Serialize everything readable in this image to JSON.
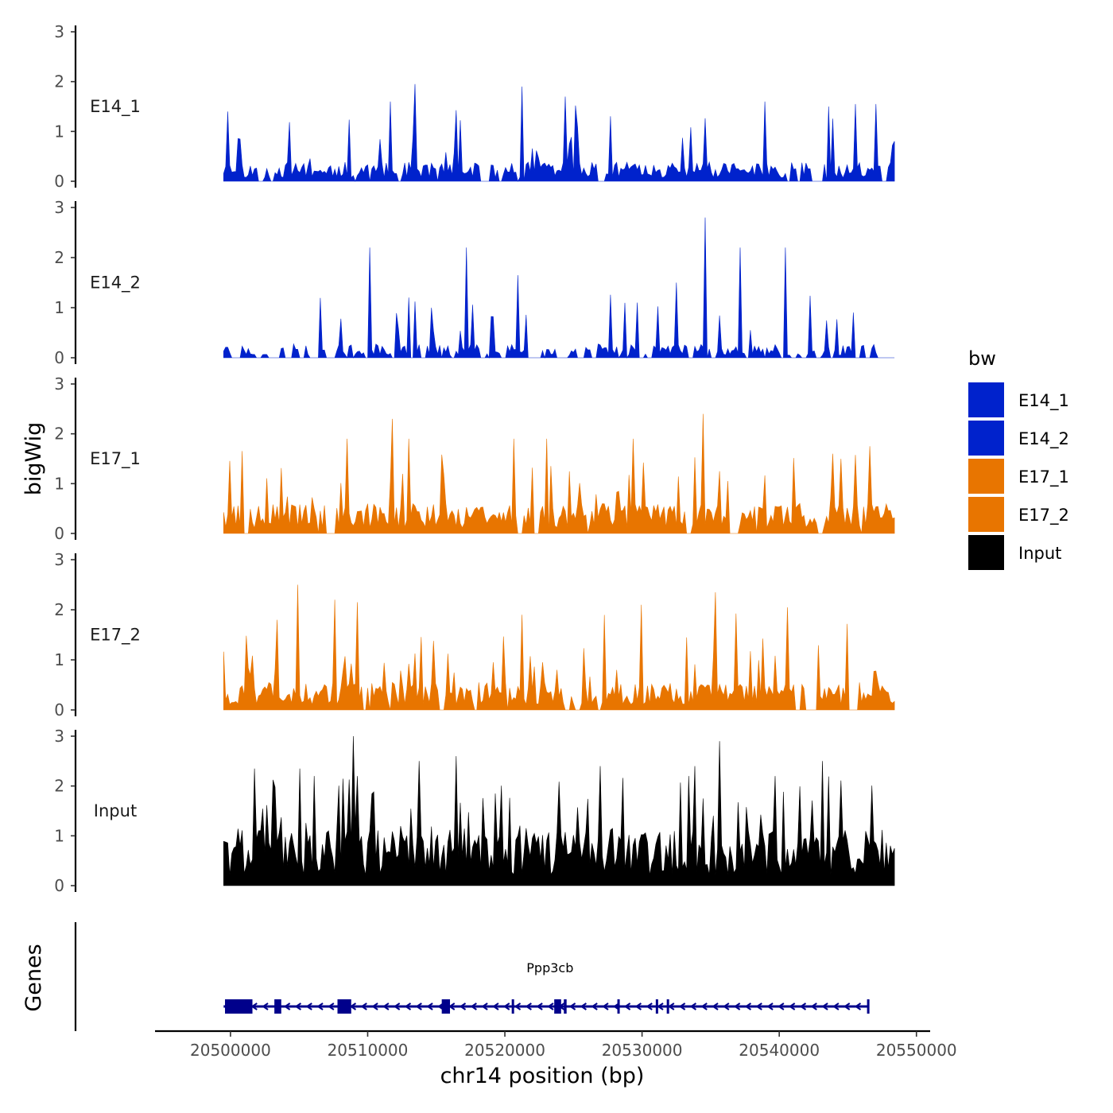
{
  "chart_data": {
    "type": "area",
    "title": "",
    "ylabel": "bigWig",
    "xlabel": "chr14 position (bp)",
    "xlim": [
      20494500,
      20551000
    ],
    "data_xrange": [
      20499500,
      20548500
    ],
    "ylim": [
      0,
      3
    ],
    "y_ticks": [
      "0",
      "1",
      "2",
      "3"
    ],
    "x_ticks": [
      {
        "value": 20500000,
        "label": "20500000"
      },
      {
        "value": 20510000,
        "label": "20510000"
      },
      {
        "value": 20520000,
        "label": "20520000"
      },
      {
        "value": 20530000,
        "label": "20530000"
      },
      {
        "value": 20540000,
        "label": "20540000"
      },
      {
        "value": 20550000,
        "label": "20550000"
      }
    ],
    "legend": {
      "title": "bw",
      "position": "right",
      "entries": [
        {
          "label": "E14_1",
          "color": "#0022CC"
        },
        {
          "label": "E14_2",
          "color": "#0022CC"
        },
        {
          "label": "E17_1",
          "color": "#E87500"
        },
        {
          "label": "E17_2",
          "color": "#E87500"
        },
        {
          "label": "Input",
          "color": "#000000"
        }
      ]
    },
    "series": [
      {
        "name": "E14_1",
        "color": "#0022CC",
        "seed": 11,
        "base": 0.35,
        "spike": 0.9,
        "peak_prob": 0.1,
        "zero_prob": 0.16,
        "peaks": [
          {
            "x": 20513400,
            "y": 1.95
          },
          {
            "x": 20521300,
            "y": 1.9
          },
          {
            "x": 20524400,
            "y": 1.7
          },
          {
            "x": 20511600,
            "y": 1.6
          },
          {
            "x": 20539000,
            "y": 1.6
          },
          {
            "x": 20545500,
            "y": 1.55
          },
          {
            "x": 20547100,
            "y": 1.55
          },
          {
            "x": 20543600,
            "y": 1.5
          },
          {
            "x": 20499800,
            "y": 1.4
          }
        ],
        "gaps": [
          [
            20518250,
            20518900
          ],
          [
            20526700,
            20527300
          ],
          [
            20542300,
            20543200
          ]
        ]
      },
      {
        "name": "E14_2",
        "color": "#0022CC",
        "seed": 23,
        "base": 0.25,
        "spike": 0.85,
        "peak_prob": 0.08,
        "zero_prob": 0.28,
        "peaks": [
          {
            "x": 20534600,
            "y": 2.8
          },
          {
            "x": 20540400,
            "y": 2.2
          },
          {
            "x": 20510200,
            "y": 2.2
          },
          {
            "x": 20517200,
            "y": 2.2
          },
          {
            "x": 20537200,
            "y": 2.2
          },
          {
            "x": 20521000,
            "y": 1.65
          },
          {
            "x": 20532500,
            "y": 1.5
          }
        ],
        "gaps": [
          [
            20500300,
            20500700
          ],
          [
            20501800,
            20502300
          ],
          [
            20503100,
            20503600
          ],
          [
            20504100,
            20504500
          ],
          [
            20505800,
            20506400
          ],
          [
            20507400,
            20507700
          ],
          [
            20521600,
            20522600
          ],
          [
            20523800,
            20524600
          ],
          [
            20525300,
            20525800
          ],
          [
            20533300,
            20533800
          ],
          [
            20535000,
            20535300
          ],
          [
            20540800,
            20541200
          ],
          [
            20542600,
            20543000
          ],
          [
            20543700,
            20544000
          ],
          [
            20546200,
            20546600
          ],
          [
            20547200,
            20548500
          ]
        ]
      },
      {
        "name": "E17_1",
        "color": "#E87500",
        "seed": 37,
        "base": 0.55,
        "spike": 1.0,
        "peak_prob": 0.11,
        "zero_prob": 0.1,
        "peaks": [
          {
            "x": 20534500,
            "y": 2.4
          },
          {
            "x": 20511800,
            "y": 2.3
          },
          {
            "x": 20513000,
            "y": 1.9
          },
          {
            "x": 20508500,
            "y": 1.9
          },
          {
            "x": 20520600,
            "y": 1.9
          },
          {
            "x": 20523000,
            "y": 1.9
          },
          {
            "x": 20529300,
            "y": 1.9
          },
          {
            "x": 20546600,
            "y": 1.75
          },
          {
            "x": 20543900,
            "y": 1.6
          }
        ],
        "gaps": [
          [
            20507000,
            20507600
          ],
          [
            20536500,
            20537000
          ],
          [
            20542800,
            20543200
          ]
        ]
      },
      {
        "name": "E17_2",
        "color": "#E87500",
        "seed": 53,
        "base": 0.5,
        "spike": 1.1,
        "peak_prob": 0.14,
        "zero_prob": 0.12,
        "peaks": [
          {
            "x": 20504900,
            "y": 2.5
          },
          {
            "x": 20507600,
            "y": 2.2
          },
          {
            "x": 20509300,
            "y": 2.15
          },
          {
            "x": 20535400,
            "y": 2.35
          },
          {
            "x": 20530000,
            "y": 2.1
          },
          {
            "x": 20540600,
            "y": 2.05
          },
          {
            "x": 20503400,
            "y": 1.8
          },
          {
            "x": 20521300,
            "y": 1.9
          }
        ],
        "gaps": [
          [
            20524400,
            20524800
          ],
          [
            20542300,
            20542800
          ],
          [
            20545000,
            20545400
          ]
        ]
      },
      {
        "name": "Input",
        "color": "#000000",
        "seed": 71,
        "base": 1.05,
        "spike": 1.3,
        "peak_prob": 0.12,
        "zero_prob": 0.0,
        "peaks": [
          {
            "x": 20508900,
            "y": 3.0
          },
          {
            "x": 20535700,
            "y": 2.9
          },
          {
            "x": 20516400,
            "y": 2.6
          },
          {
            "x": 20533800,
            "y": 2.4
          },
          {
            "x": 20505000,
            "y": 2.35
          },
          {
            "x": 20543200,
            "y": 2.5
          },
          {
            "x": 20527000,
            "y": 2.4
          },
          {
            "x": 20501800,
            "y": 2.35
          },
          {
            "x": 20513700,
            "y": 2.5
          }
        ],
        "gaps": []
      }
    ],
    "genes_panel": {
      "ylabel": "Genes",
      "gene": {
        "name": "Ppp3cb",
        "start": 20499500,
        "end": 20546500,
        "strand": "-",
        "color": "#00008B",
        "exons": [
          {
            "start": 20499600,
            "end": 20501600
          },
          {
            "start": 20503200,
            "end": 20503700
          },
          {
            "start": 20507800,
            "end": 20508800
          },
          {
            "start": 20515400,
            "end": 20516000
          },
          {
            "start": 20520500,
            "end": 20520600
          },
          {
            "start": 20523600,
            "end": 20524100
          },
          {
            "start": 20524300,
            "end": 20524500
          },
          {
            "start": 20528200,
            "end": 20528300
          },
          {
            "start": 20531000,
            "end": 20531100
          },
          {
            "start": 20531800,
            "end": 20531900
          },
          {
            "start": 20546400,
            "end": 20546500
          }
        ]
      }
    }
  }
}
